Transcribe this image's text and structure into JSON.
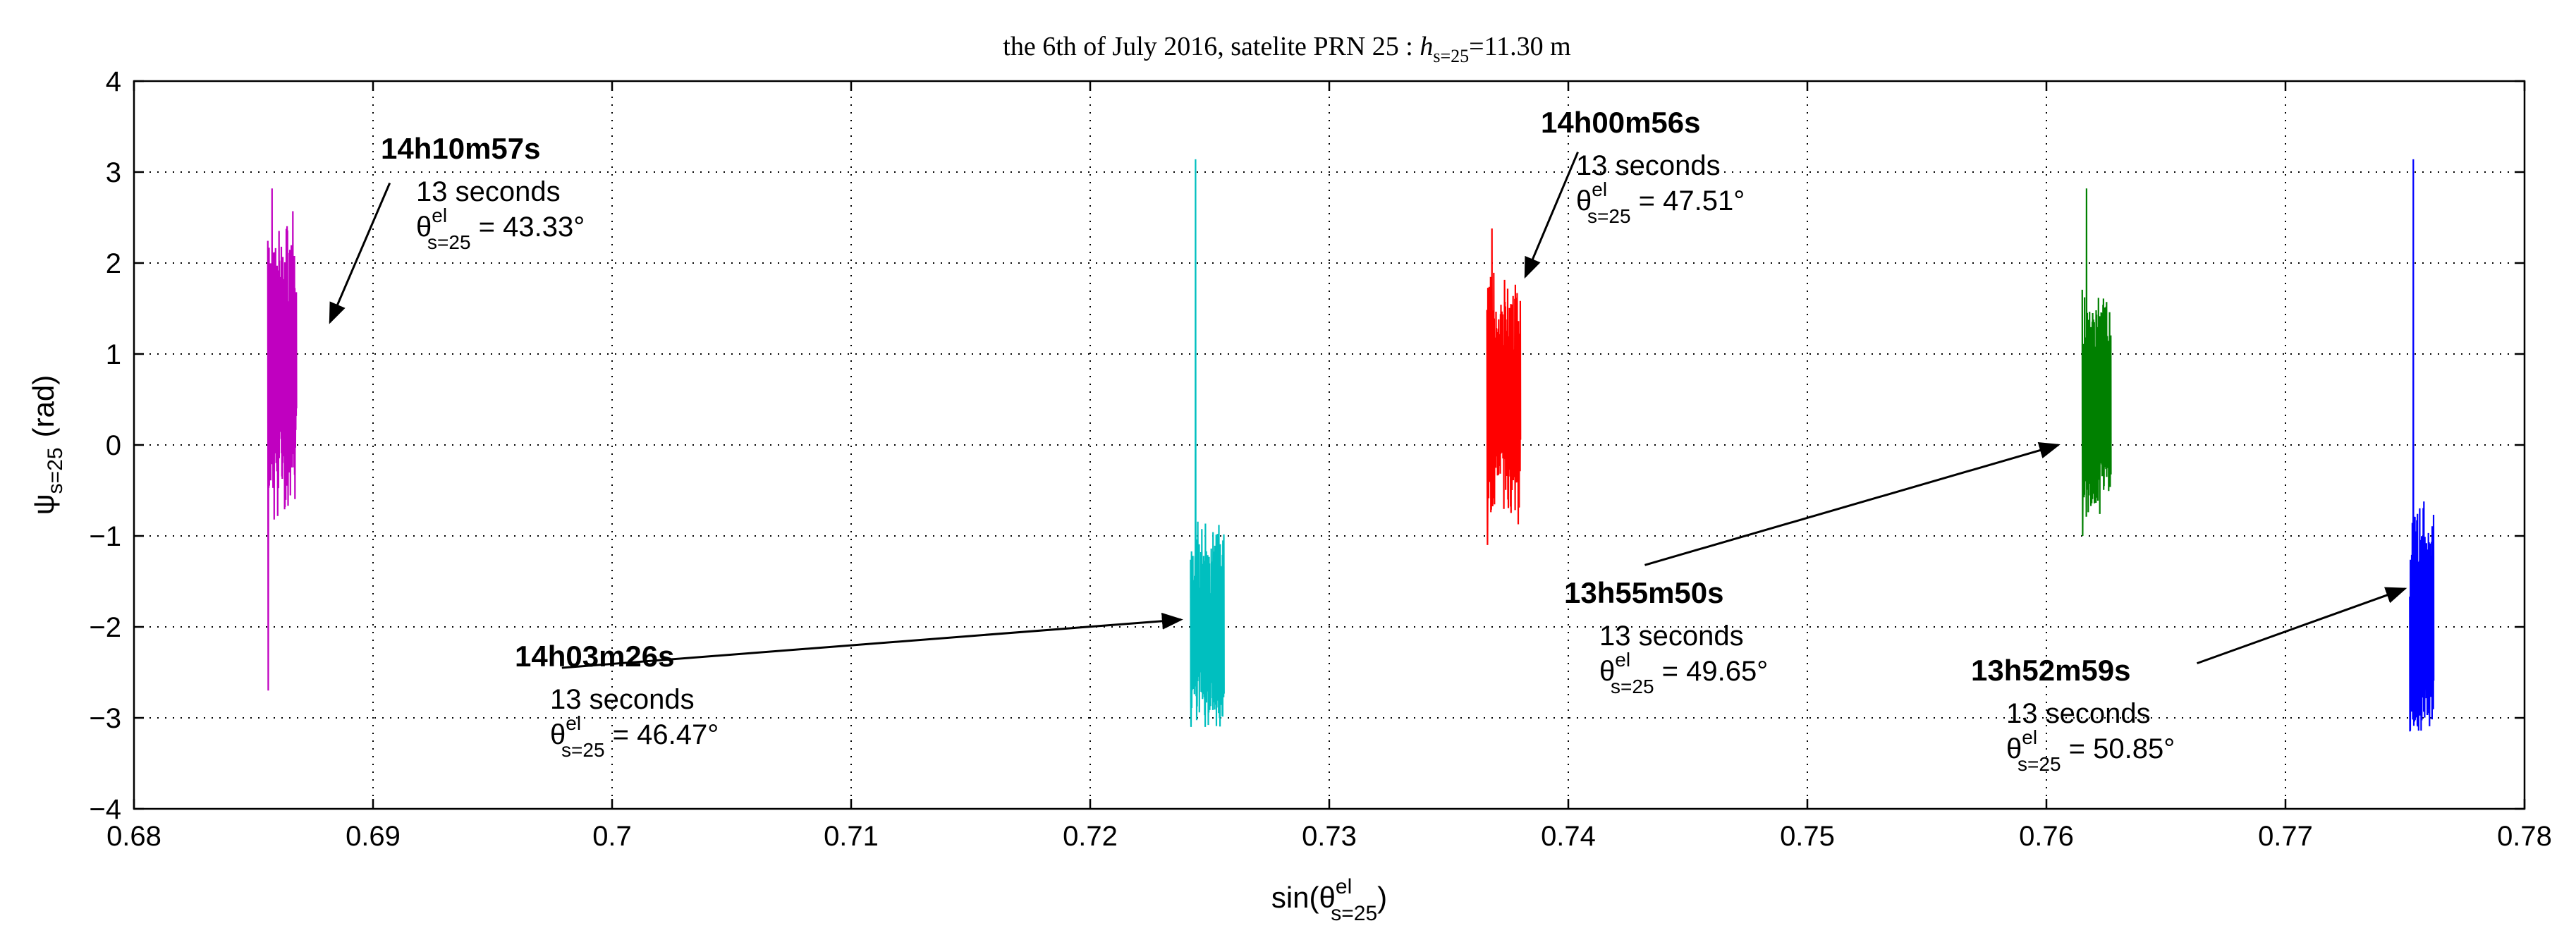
{
  "chart_data": {
    "type": "line",
    "title_parts": {
      "prefix": "the 6th of July 2016, satelite PRN 25 : ",
      "h": "h",
      "sub": "s=25",
      "value": "=11.30 m"
    },
    "xlabel_parts": {
      "prefix": "sin(θ",
      "sup": "el",
      "sub": "s=25",
      "suffix": ")"
    },
    "ylabel_parts": {
      "main": "ψ",
      "sub": "s=25",
      "unit": "(rad)"
    },
    "xlim": [
      0.68,
      0.78
    ],
    "ylim": [
      -4,
      4
    ],
    "xticks": [
      "0.68",
      "0.69",
      "0.7",
      "0.71",
      "0.72",
      "0.73",
      "0.74",
      "0.75",
      "0.76",
      "0.77",
      "0.78"
    ],
    "xtick_values": [
      0.68,
      0.69,
      0.7,
      0.71,
      0.72,
      0.73,
      0.74,
      0.75,
      0.76,
      0.77,
      0.78
    ],
    "yticks": [
      "4",
      "3",
      "2",
      "1",
      "0",
      "−1",
      "−2",
      "−3",
      "−4"
    ],
    "ytick_values": [
      4,
      3,
      2,
      1,
      0,
      -1,
      -2,
      -3,
      -4
    ],
    "grid": true,
    "series": [
      {
        "name": "14h10m57s",
        "color": "#c000c0",
        "x_range": [
          0.6856,
          0.6868
        ],
        "y_min": -2.7,
        "y_max": 2.82,
        "core_min": -0.5,
        "core_max": 2.2,
        "seed": 11
      },
      {
        "name": "14h03m26s",
        "color": "#00bfbf",
        "x_range": [
          0.7242,
          0.7256
        ],
        "y_min": -3.1,
        "y_max": 3.14,
        "core_min": -3.0,
        "core_max": -1.0,
        "seed": 23
      },
      {
        "name": "14h00m56s",
        "color": "#ff0000",
        "x_range": [
          0.7366,
          0.738
        ],
        "y_min": -1.1,
        "y_max": 2.38,
        "core_min": -0.6,
        "core_max": 1.6,
        "seed": 37
      },
      {
        "name": "13h55m50s",
        "color": "#008000",
        "x_range": [
          0.7615,
          0.7627
        ],
        "y_min": -1.0,
        "y_max": 2.82,
        "core_min": -0.6,
        "core_max": 1.5,
        "seed": 41
      },
      {
        "name": "13h52m59s",
        "color": "#0000ff",
        "x_range": [
          0.7752,
          0.7762
        ],
        "y_min": -3.14,
        "y_max": 3.14,
        "core_min": -3.1,
        "core_max": -0.9,
        "seed": 53
      }
    ],
    "annotations": [
      {
        "time": "14h10m57s",
        "duration": "13 seconds",
        "theta_sup": "el",
        "theta_sub": "s=25",
        "value": " = 43.33°",
        "arrow_tip": [
          0.6882,
          1.35
        ],
        "arrow_tail": [
          0.6907,
          2.88
        ]
      },
      {
        "time": "14h00m56s",
        "duration": "13 seconds",
        "theta_sup": "el",
        "theta_sub": "s=25",
        "value": " = 47.51°",
        "arrow_tip": [
          0.7382,
          1.85
        ],
        "arrow_tail": [
          0.7404,
          3.22
        ]
      },
      {
        "time": "14h03m26s",
        "duration": "13 seconds",
        "theta_sup": "el",
        "theta_sub": "s=25",
        "value": " = 46.47°",
        "arrow_tip": [
          0.7238,
          -1.92
        ],
        "arrow_tail": [
          0.6979,
          -2.45
        ]
      },
      {
        "time": "13h55m50s",
        "duration": "13 seconds",
        "theta_sup": "el",
        "theta_sub": "s=25",
        "value": " = 49.65°",
        "arrow_tip": [
          0.7605,
          0.0
        ],
        "arrow_tail": [
          0.7432,
          -1.32
        ]
      },
      {
        "time": "13h52m59s",
        "duration": "13 seconds",
        "theta_sup": "el",
        "theta_sub": "s=25",
        "value": " = 50.85°",
        "arrow_tip": [
          0.775,
          -1.58
        ],
        "arrow_tail": [
          0.7663,
          -2.4
        ]
      }
    ]
  }
}
